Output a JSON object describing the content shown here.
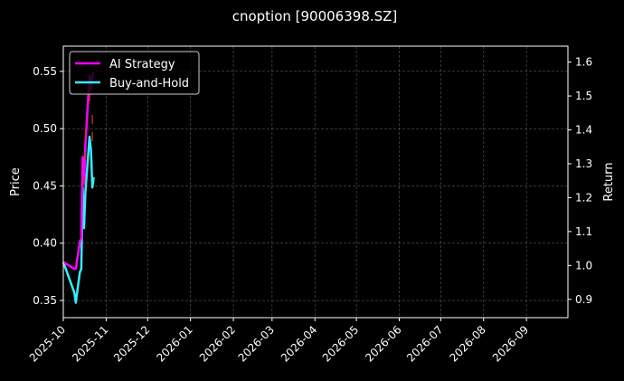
{
  "chart_data": {
    "type": "line",
    "title": "cnoption [90006398.SZ]",
    "xlabel": "",
    "ylabel": "Price",
    "y2label": "Return",
    "x_ticks": [
      "2025-10",
      "2025-11",
      "2025-12",
      "2026-01",
      "2026-02",
      "2026-03",
      "2026-04",
      "2026-05",
      "2026-06",
      "2026-07",
      "2026-08",
      "2026-09"
    ],
    "xlim": [
      "2025-10-01",
      "2026-10-01"
    ],
    "ylim": [
      0.335,
      0.572
    ],
    "y_ticks": [
      0.35,
      0.4,
      0.45,
      0.5,
      0.55
    ],
    "y2lim": [
      0.846,
      1.647
    ],
    "y2_ticks": [
      0.9,
      1.0,
      1.1,
      1.2,
      1.3,
      1.4,
      1.5,
      1.6
    ],
    "grid": true,
    "legend_position": "top-left",
    "background": "#000000",
    "series": [
      {
        "name": "AI Strategy",
        "axis": "right",
        "color": "#ff00ff",
        "x": [
          "2025-10-01",
          "2025-10-09",
          "2025-10-10",
          "2025-10-13",
          "2025-10-14",
          "2025-10-15",
          "2025-10-16",
          "2025-10-17",
          "2025-10-20",
          "2025-10-21",
          "2025-10-22",
          "2025-10-23"
        ],
        "values": [
          1.01,
          0.99,
          0.99,
          1.07,
          1.08,
          1.32,
          1.24,
          1.36,
          1.56,
          1.52,
          1.56,
          1.57
        ]
      },
      {
        "name": "Buy-and-Hold",
        "axis": "right",
        "color": "#33eeff",
        "x": [
          "2025-10-01",
          "2025-10-09",
          "2025-10-10",
          "2025-10-13",
          "2025-10-14",
          "2025-10-15",
          "2025-10-16",
          "2025-10-17",
          "2025-10-20",
          "2025-10-21",
          "2025-10-22",
          "2025-10-23"
        ],
        "values": [
          1.01,
          0.92,
          0.89,
          0.98,
          0.99,
          1.23,
          1.11,
          1.22,
          1.38,
          1.34,
          1.23,
          1.26
        ]
      }
    ],
    "price_markers": {
      "color": "#d23228",
      "x": [
        "2025-10-16",
        "2025-10-17",
        "2025-10-17",
        "2025-10-20",
        "2025-10-20",
        "2025-10-22",
        "2025-10-22"
      ],
      "values": [
        0.455,
        0.476,
        0.495,
        0.535,
        0.528,
        0.508,
        0.493
      ]
    }
  }
}
